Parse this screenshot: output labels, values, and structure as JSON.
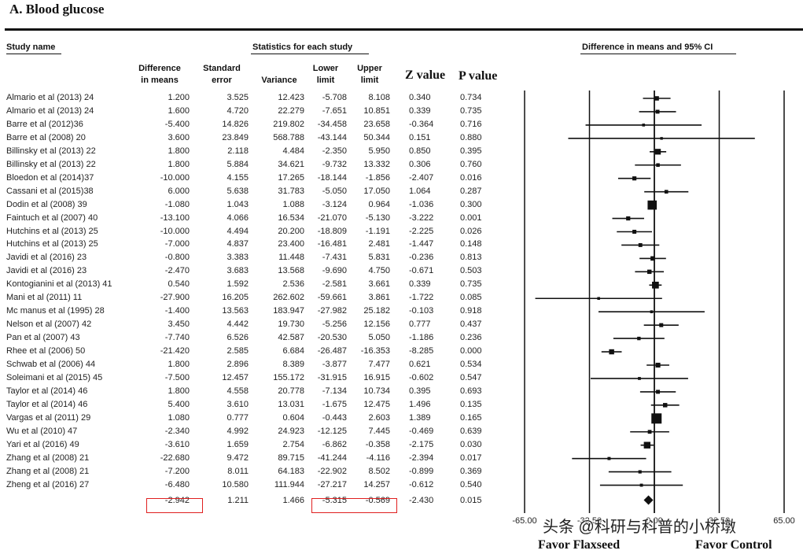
{
  "title": "A. Blood glucose",
  "headers": {
    "study_name": "Study name",
    "stats": "Statistics for each study",
    "ci": "Difference in means and 95% CI",
    "diff1": "Difference",
    "diff2": "in means",
    "se1": "Standard",
    "se2": "error",
    "variance": "Variance",
    "lower1": "Lower",
    "lower2": "limit",
    "upper1": "Upper",
    "upper2": "limit",
    "z": "Z value",
    "p": "P value"
  },
  "studies": [
    {
      "name": "Almario et al (2013) 24",
      "diff": "1.200",
      "se": "3.525",
      "var": "12.423",
      "lower": "-5.708",
      "upper": "8.108",
      "z": "0.340",
      "p": "0.734"
    },
    {
      "name": "Almario et al (2013)  24",
      "diff": "1.600",
      "se": "4.720",
      "var": "22.279",
      "lower": "-7.651",
      "upper": "10.851",
      "z": "0.339",
      "p": "0.735"
    },
    {
      "name": "Barre  et al (2012)36",
      "diff": "-5.400",
      "se": "14.826",
      "var": "219.802",
      "lower": "-34.458",
      "upper": "23.658",
      "z": "-0.364",
      "p": "0.716"
    },
    {
      "name": "Barre et al (2008) 20",
      "diff": "3.600",
      "se": "23.849",
      "var": "568.788",
      "lower": "-43.144",
      "upper": "50.344",
      "z": "0.151",
      "p": "0.880"
    },
    {
      "name": "Billinsky et al (2013) 22",
      "diff": "1.800",
      "se": "2.118",
      "var": "4.484",
      "lower": "-2.350",
      "upper": "5.950",
      "z": "0.850",
      "p": "0.395"
    },
    {
      "name": "Billinsky et al (2013) 22",
      "diff": "1.800",
      "se": "5.884",
      "var": "34.621",
      "lower": "-9.732",
      "upper": "13.332",
      "z": "0.306",
      "p": "0.760"
    },
    {
      "name": "Bloedon et al (2014)37",
      "diff": "-10.000",
      "se": "4.155",
      "var": "17.265",
      "lower": "-18.144",
      "upper": "-1.856",
      "z": "-2.407",
      "p": "0.016"
    },
    {
      "name": "Cassani et al (2015)38",
      "diff": "6.000",
      "se": "5.638",
      "var": "31.783",
      "lower": "-5.050",
      "upper": "17.050",
      "z": "1.064",
      "p": "0.287"
    },
    {
      "name": "Dodin et al (2008) 39",
      "diff": "-1.080",
      "se": "1.043",
      "var": "1.088",
      "lower": "-3.124",
      "upper": "0.964",
      "z": "-1.036",
      "p": "0.300"
    },
    {
      "name": "Faintuch et al (2007) 40",
      "diff": "-13.100",
      "se": "4.066",
      "var": "16.534",
      "lower": "-21.070",
      "upper": "-5.130",
      "z": "-3.222",
      "p": "0.001"
    },
    {
      "name": "Hutchins et al (2013) 25",
      "diff": "-10.000",
      "se": "4.494",
      "var": "20.200",
      "lower": "-18.809",
      "upper": "-1.191",
      "z": "-2.225",
      "p": "0.026"
    },
    {
      "name": "Hutchins et al (2013) 25",
      "diff": "-7.000",
      "se": "4.837",
      "var": "23.400",
      "lower": "-16.481",
      "upper": "2.481",
      "z": "-1.447",
      "p": "0.148"
    },
    {
      "name": "Javidi et al (2016) 23",
      "diff": "-0.800",
      "se": "3.383",
      "var": "11.448",
      "lower": "-7.431",
      "upper": "5.831",
      "z": "-0.236",
      "p": "0.813"
    },
    {
      "name": "Javidi et al (2016)  23",
      "diff": "-2.470",
      "se": "3.683",
      "var": "13.568",
      "lower": "-9.690",
      "upper": "4.750",
      "z": "-0.671",
      "p": "0.503"
    },
    {
      "name": "Kontogianini et al (2013) 41",
      "diff": "0.540",
      "se": "1.592",
      "var": "2.536",
      "lower": "-2.581",
      "upper": "3.661",
      "z": "0.339",
      "p": "0.735"
    },
    {
      "name": "Mani et al (2011) 11",
      "diff": "-27.900",
      "se": "16.205",
      "var": "262.602",
      "lower": "-59.661",
      "upper": "3.861",
      "z": "-1.722",
      "p": "0.085"
    },
    {
      "name": "Mc manus et al (1995) 28",
      "diff": "-1.400",
      "se": "13.563",
      "var": "183.947",
      "lower": "-27.982",
      "upper": "25.182",
      "z": "-0.103",
      "p": "0.918"
    },
    {
      "name": "Nelson et al (2007) 42",
      "diff": "3.450",
      "se": "4.442",
      "var": "19.730",
      "lower": "-5.256",
      "upper": "12.156",
      "z": "0.777",
      "p": "0.437"
    },
    {
      "name": "Pan et al (2007) 43",
      "diff": "-7.740",
      "se": "6.526",
      "var": "42.587",
      "lower": "-20.530",
      "upper": "5.050",
      "z": "-1.186",
      "p": "0.236"
    },
    {
      "name": "Rhee et al (2006) 50",
      "diff": "-21.420",
      "se": "2.585",
      "var": "6.684",
      "lower": "-26.487",
      "upper": "-16.353",
      "z": "-8.285",
      "p": "0.000"
    },
    {
      "name": "Schwab et al (2006) 44",
      "diff": "1.800",
      "se": "2.896",
      "var": "8.389",
      "lower": "-3.877",
      "upper": "7.477",
      "z": "0.621",
      "p": "0.534"
    },
    {
      "name": "Soleimani et al (2015) 45",
      "diff": "-7.500",
      "se": "12.457",
      "var": "155.172",
      "lower": "-31.915",
      "upper": "16.915",
      "z": "-0.602",
      "p": "0.547"
    },
    {
      "name": "Taylor et al (2014) 46",
      "diff": "1.800",
      "se": "4.558",
      "var": "20.778",
      "lower": "-7.134",
      "upper": "10.734",
      "z": "0.395",
      "p": "0.693"
    },
    {
      "name": "Taylor et al (2014) 46",
      "diff": "5.400",
      "se": "3.610",
      "var": "13.031",
      "lower": "-1.675",
      "upper": "12.475",
      "z": "1.496",
      "p": "0.135"
    },
    {
      "name": "Vargas et al (2011) 29",
      "diff": "1.080",
      "se": "0.777",
      "var": "0.604",
      "lower": "-0.443",
      "upper": "2.603",
      "z": "1.389",
      "p": "0.165"
    },
    {
      "name": "Wu et al (2010) 47",
      "diff": "-2.340",
      "se": "4.992",
      "var": "24.923",
      "lower": "-12.125",
      "upper": "7.445",
      "z": "-0.469",
      "p": "0.639"
    },
    {
      "name": "Yari et al (2016) 49",
      "diff": "-3.610",
      "se": "1.659",
      "var": "2.754",
      "lower": "-6.862",
      "upper": "-0.358",
      "z": "-2.175",
      "p": "0.030"
    },
    {
      "name": "Zhang et al (2008) 21",
      "diff": "-22.680",
      "se": "9.472",
      "var": "89.715",
      "lower": "-41.244",
      "upper": "-4.116",
      "z": "-2.394",
      "p": "0.017"
    },
    {
      "name": "Zhang et al (2008)  21",
      "diff": "-7.200",
      "se": "8.011",
      "var": "64.183",
      "lower": "-22.902",
      "upper": "8.502",
      "z": "-0.899",
      "p": "0.369"
    },
    {
      "name": "Zheng et al  (2016) 27",
      "diff": "-6.480",
      "se": "10.580",
      "var": "111.944",
      "lower": "-27.217",
      "upper": "14.257",
      "z": "-0.612",
      "p": "0.540"
    }
  ],
  "summary": {
    "diff": "-2.942",
    "se": "1.211",
    "var": "1.466",
    "lower": "-5.315",
    "upper": "-0.569",
    "z": "-2.430",
    "p": "0.015"
  },
  "axis": {
    "ticks": [
      "-65.00",
      "-32.50",
      "0.00",
      "32.50",
      "65.00"
    ]
  },
  "favor": {
    "left": "Favor Flaxseed",
    "right": "Favor Control"
  },
  "watermark": "头条 @科研与科普的小桥墩",
  "chart_data": {
    "type": "forest",
    "title": "A. Blood glucose",
    "xlim": [
      -65,
      65
    ],
    "xticks": [
      -65,
      -32.5,
      0,
      32.5,
      65
    ],
    "studies": [
      {
        "label": "Almario et al (2013) 24",
        "est": 1.2,
        "lower": -5.708,
        "upper": 8.108,
        "var": 12.423
      },
      {
        "label": "Almario et al (2013)  24",
        "est": 1.6,
        "lower": -7.651,
        "upper": 10.851,
        "var": 22.279
      },
      {
        "label": "Barre  et al (2012)36",
        "est": -5.4,
        "lower": -34.458,
        "upper": 23.658,
        "var": 219.802
      },
      {
        "label": "Barre et al (2008) 20",
        "est": 3.6,
        "lower": -43.144,
        "upper": 50.344,
        "var": 568.788
      },
      {
        "label": "Billinsky et al (2013) 22",
        "est": 1.8,
        "lower": -2.35,
        "upper": 5.95,
        "var": 4.484
      },
      {
        "label": "Billinsky et al (2013) 22",
        "est": 1.8,
        "lower": -9.732,
        "upper": 13.332,
        "var": 34.621
      },
      {
        "label": "Bloedon et al (2014)37",
        "est": -10.0,
        "lower": -18.144,
        "upper": -1.856,
        "var": 17.265
      },
      {
        "label": "Cassani et al (2015)38",
        "est": 6.0,
        "lower": -5.05,
        "upper": 17.05,
        "var": 31.783
      },
      {
        "label": "Dodin et al (2008) 39",
        "est": -1.08,
        "lower": -3.124,
        "upper": 0.964,
        "var": 1.088
      },
      {
        "label": "Faintuch et al (2007) 40",
        "est": -13.1,
        "lower": -21.07,
        "upper": -5.13,
        "var": 16.534
      },
      {
        "label": "Hutchins et al (2013) 25",
        "est": -10.0,
        "lower": -18.809,
        "upper": -1.191,
        "var": 20.2
      },
      {
        "label": "Hutchins et al (2013) 25",
        "est": -7.0,
        "lower": -16.481,
        "upper": 2.481,
        "var": 23.4
      },
      {
        "label": "Javidi et al (2016) 23",
        "est": -0.8,
        "lower": -7.431,
        "upper": 5.831,
        "var": 11.448
      },
      {
        "label": "Javidi et al (2016)  23",
        "est": -2.47,
        "lower": -9.69,
        "upper": 4.75,
        "var": 13.568
      },
      {
        "label": "Kontogianini et al (2013) 41",
        "est": 0.54,
        "lower": -2.581,
        "upper": 3.661,
        "var": 2.536
      },
      {
        "label": "Mani et al (2011) 11",
        "est": -27.9,
        "lower": -59.661,
        "upper": 3.861,
        "var": 262.602
      },
      {
        "label": "Mc manus et al (1995) 28",
        "est": -1.4,
        "lower": -27.982,
        "upper": 25.182,
        "var": 183.947
      },
      {
        "label": "Nelson et al (2007) 42",
        "est": 3.45,
        "lower": -5.256,
        "upper": 12.156,
        "var": 19.73
      },
      {
        "label": "Pan et al (2007) 43",
        "est": -7.74,
        "lower": -20.53,
        "upper": 5.05,
        "var": 42.587
      },
      {
        "label": "Rhee et al (2006) 50",
        "est": -21.42,
        "lower": -26.487,
        "upper": -16.353,
        "var": 6.684
      },
      {
        "label": "Schwab et al (2006) 44",
        "est": 1.8,
        "lower": -3.877,
        "upper": 7.477,
        "var": 8.389
      },
      {
        "label": "Soleimani et al (2015) 45",
        "est": -7.5,
        "lower": -31.915,
        "upper": 16.915,
        "var": 155.172
      },
      {
        "label": "Taylor et al (2014) 46",
        "est": 1.8,
        "lower": -7.134,
        "upper": 10.734,
        "var": 20.778
      },
      {
        "label": "Taylor et al (2014) 46",
        "est": 5.4,
        "lower": -1.675,
        "upper": 12.475,
        "var": 13.031
      },
      {
        "label": "Vargas et al (2011) 29",
        "est": 1.08,
        "lower": -0.443,
        "upper": 2.603,
        "var": 0.604
      },
      {
        "label": "Wu et al (2010) 47",
        "est": -2.34,
        "lower": -12.125,
        "upper": 7.445,
        "var": 24.923
      },
      {
        "label": "Yari et al (2016) 49",
        "est": -3.61,
        "lower": -6.862,
        "upper": -0.358,
        "var": 2.754
      },
      {
        "label": "Zhang et al (2008) 21",
        "est": -22.68,
        "lower": -41.244,
        "upper": -4.116,
        "var": 89.715
      },
      {
        "label": "Zhang et al (2008)  21",
        "est": -7.2,
        "lower": -22.902,
        "upper": 8.502,
        "var": 64.183
      },
      {
        "label": "Zheng et al  (2016) 27",
        "est": -6.48,
        "lower": -27.217,
        "upper": 14.257,
        "var": 111.944
      }
    ],
    "pooled": {
      "est": -2.942,
      "lower": -5.315,
      "upper": -0.569
    },
    "highlight_color": "#e02020"
  }
}
